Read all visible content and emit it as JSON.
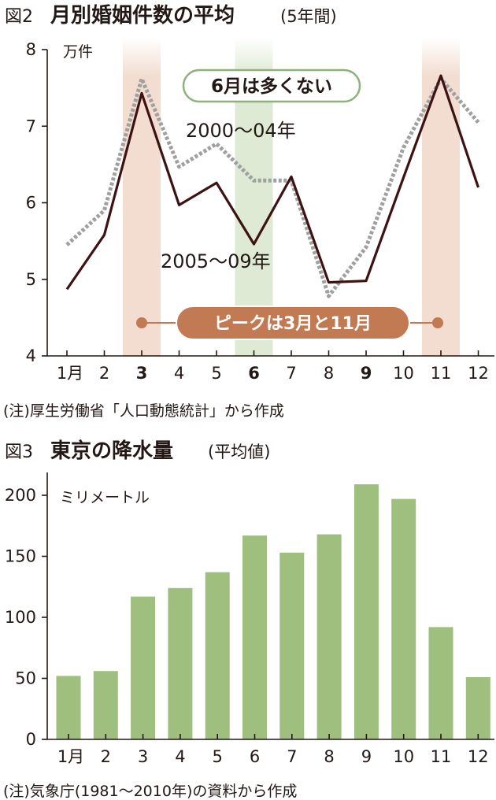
{
  "chart_data": [
    {
      "type": "line",
      "figure_number": "図2",
      "title": "月別婚姻件数の平均",
      "subtitle": "(5年間)",
      "unit": "万件",
      "categories": [
        "1月",
        "2",
        "3",
        "4",
        "5",
        "6",
        "7",
        "8",
        "9",
        "10",
        "11",
        "12"
      ],
      "bold_categories": [
        "3",
        "6",
        "9"
      ],
      "ylim": [
        4,
        8
      ],
      "yticks": [
        "4",
        "5",
        "6",
        "7",
        "8"
      ],
      "grid": false,
      "series": [
        {
          "name": "2000〜04年",
          "style": "dotted",
          "color": "#9fa0a0",
          "values": [
            5.45,
            5.9,
            7.62,
            6.47,
            6.77,
            6.29,
            6.29,
            4.78,
            5.42,
            6.72,
            7.62,
            7.05
          ]
        },
        {
          "name": "2005〜09年",
          "style": "solid",
          "color": "#3d1212",
          "values": [
            4.87,
            5.58,
            7.43,
            5.97,
            6.26,
            5.46,
            6.34,
            4.96,
            4.98,
            6.33,
            7.66,
            6.2
          ]
        }
      ],
      "highlighted_months": {
        "peaks": [
          "3",
          "11"
        ],
        "peak_color": "#f2ddd0",
        "june": "6",
        "june_color": "#deead4"
      },
      "callouts": [
        "6月は多くない",
        "ピークは3月と11月"
      ],
      "callout_colors": {
        "peak": "#c27a52",
        "june_border": "#8db37a"
      },
      "source_note": "(注)厚生労働省「人口動態統計」から作成"
    },
    {
      "type": "bar",
      "figure_number": "図3",
      "title": "東京の降水量",
      "subtitle": "(平均値)",
      "unit": "ミリメートル",
      "categories": [
        "1月",
        "2",
        "3",
        "4",
        "5",
        "6",
        "7",
        "8",
        "9",
        "10",
        "11",
        "12"
      ],
      "values": [
        52,
        56,
        117,
        124,
        137,
        167,
        153,
        168,
        209,
        197,
        92,
        51
      ],
      "ylim": [
        0,
        225
      ],
      "yticks": [
        "0",
        "50",
        "100",
        "150",
        "200"
      ],
      "grid": false,
      "bar_color": "#9fbf7e",
      "source_note": "(注)気象庁(1981〜2010年)の資料から作成"
    }
  ]
}
